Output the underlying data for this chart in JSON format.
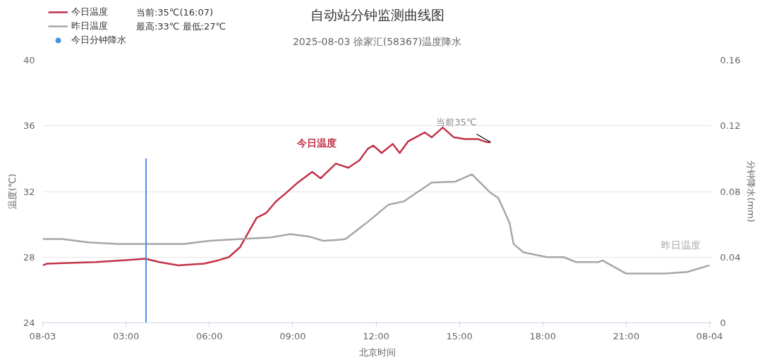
{
  "chart_data": {
    "type": "line",
    "title": "自动站分钟监测曲线图",
    "subtitle": "2025-08-03 徐家汇(58367)温度降水",
    "xlabel": "北京时间",
    "ylabel": "温度(℃)",
    "y2label": "分钟降水(mm)",
    "xlim": [
      0,
      24.1
    ],
    "xticks": [
      {
        "value": 0,
        "label": "08-03"
      },
      {
        "value": 3,
        "label": "03:00"
      },
      {
        "value": 6,
        "label": "06:00"
      },
      {
        "value": 9,
        "label": "09:00"
      },
      {
        "value": 12,
        "label": "12:00"
      },
      {
        "value": 15,
        "label": "15:00"
      },
      {
        "value": 18,
        "label": "18:00"
      },
      {
        "value": 21,
        "label": "21:00"
      },
      {
        "value": 24,
        "label": "08-04"
      }
    ],
    "ylim": [
      24,
      40
    ],
    "yticks": [
      24,
      28,
      32,
      36,
      40
    ],
    "y2lim": [
      0,
      0.16
    ],
    "y2ticks": [
      0,
      0.04,
      0.08,
      0.12,
      0.16
    ],
    "grid": "y",
    "legend": "top left",
    "marker": "none",
    "line_style": "solid",
    "series": [
      {
        "name": "今日温度",
        "color": "#c23148",
        "x": [
          0,
          0.15,
          1.9,
          2.8,
          3.7,
          4.2,
          4.9,
          5.8,
          6.3,
          6.7,
          7.1,
          7.35,
          7.7,
          8.05,
          8.4,
          8.75,
          9.15,
          9.7,
          10.0,
          10.55,
          11.0,
          11.4,
          11.7,
          11.9,
          12.2,
          12.6,
          12.85,
          13.15,
          13.75,
          14.0,
          14.4,
          14.8,
          15.2,
          15.65,
          16.0,
          16.12
        ],
        "values": [
          27.5,
          27.6,
          27.7,
          27.8,
          27.9,
          27.7,
          27.5,
          27.6,
          27.8,
          28.0,
          28.6,
          29.35,
          30.4,
          30.7,
          31.4,
          31.9,
          32.5,
          33.2,
          32.8,
          33.7,
          33.45,
          33.9,
          34.6,
          34.8,
          34.35,
          34.9,
          34.35,
          35.05,
          35.6,
          35.3,
          35.9,
          35.3,
          35.2,
          35.2,
          35.0,
          35.0
        ]
      },
      {
        "name": "昨日温度",
        "color": "#a6a6a6",
        "x": [
          0,
          0.7,
          1.65,
          2.7,
          3.9,
          5.1,
          6.0,
          7.1,
          8.2,
          8.9,
          9.6,
          10.1,
          10.6,
          10.9,
          11.7,
          12.45,
          13.0,
          14.0,
          14.85,
          15.45,
          16.1,
          16.4,
          16.8,
          16.95,
          17.3,
          18.15,
          18.75,
          19.2,
          20.0,
          20.15,
          21.0,
          22.4,
          23.2,
          24.0
        ],
        "values": [
          29.1,
          29.1,
          28.9,
          28.8,
          28.8,
          28.8,
          29.0,
          29.1,
          29.2,
          29.4,
          29.25,
          29.0,
          29.05,
          29.1,
          30.15,
          31.2,
          31.4,
          32.55,
          32.6,
          33.05,
          31.95,
          31.6,
          30.1,
          28.8,
          28.3,
          28.0,
          28.0,
          27.7,
          27.7,
          27.8,
          27.0,
          27.0,
          27.1,
          27.5
        ]
      },
      {
        "name": "今日分钟降水",
        "color": "#4a90e2",
        "type": "bar",
        "axis": "y2",
        "x": [
          3.72
        ],
        "values": [
          0.1
        ]
      }
    ],
    "annotations": [
      "当前:35℃(16:07)",
      "最高:33℃ 最低:27℃",
      "今日温度",
      "昨日温度",
      {
        "text": "当前35℃",
        "x": 16.12,
        "y": 35.0
      }
    ]
  }
}
